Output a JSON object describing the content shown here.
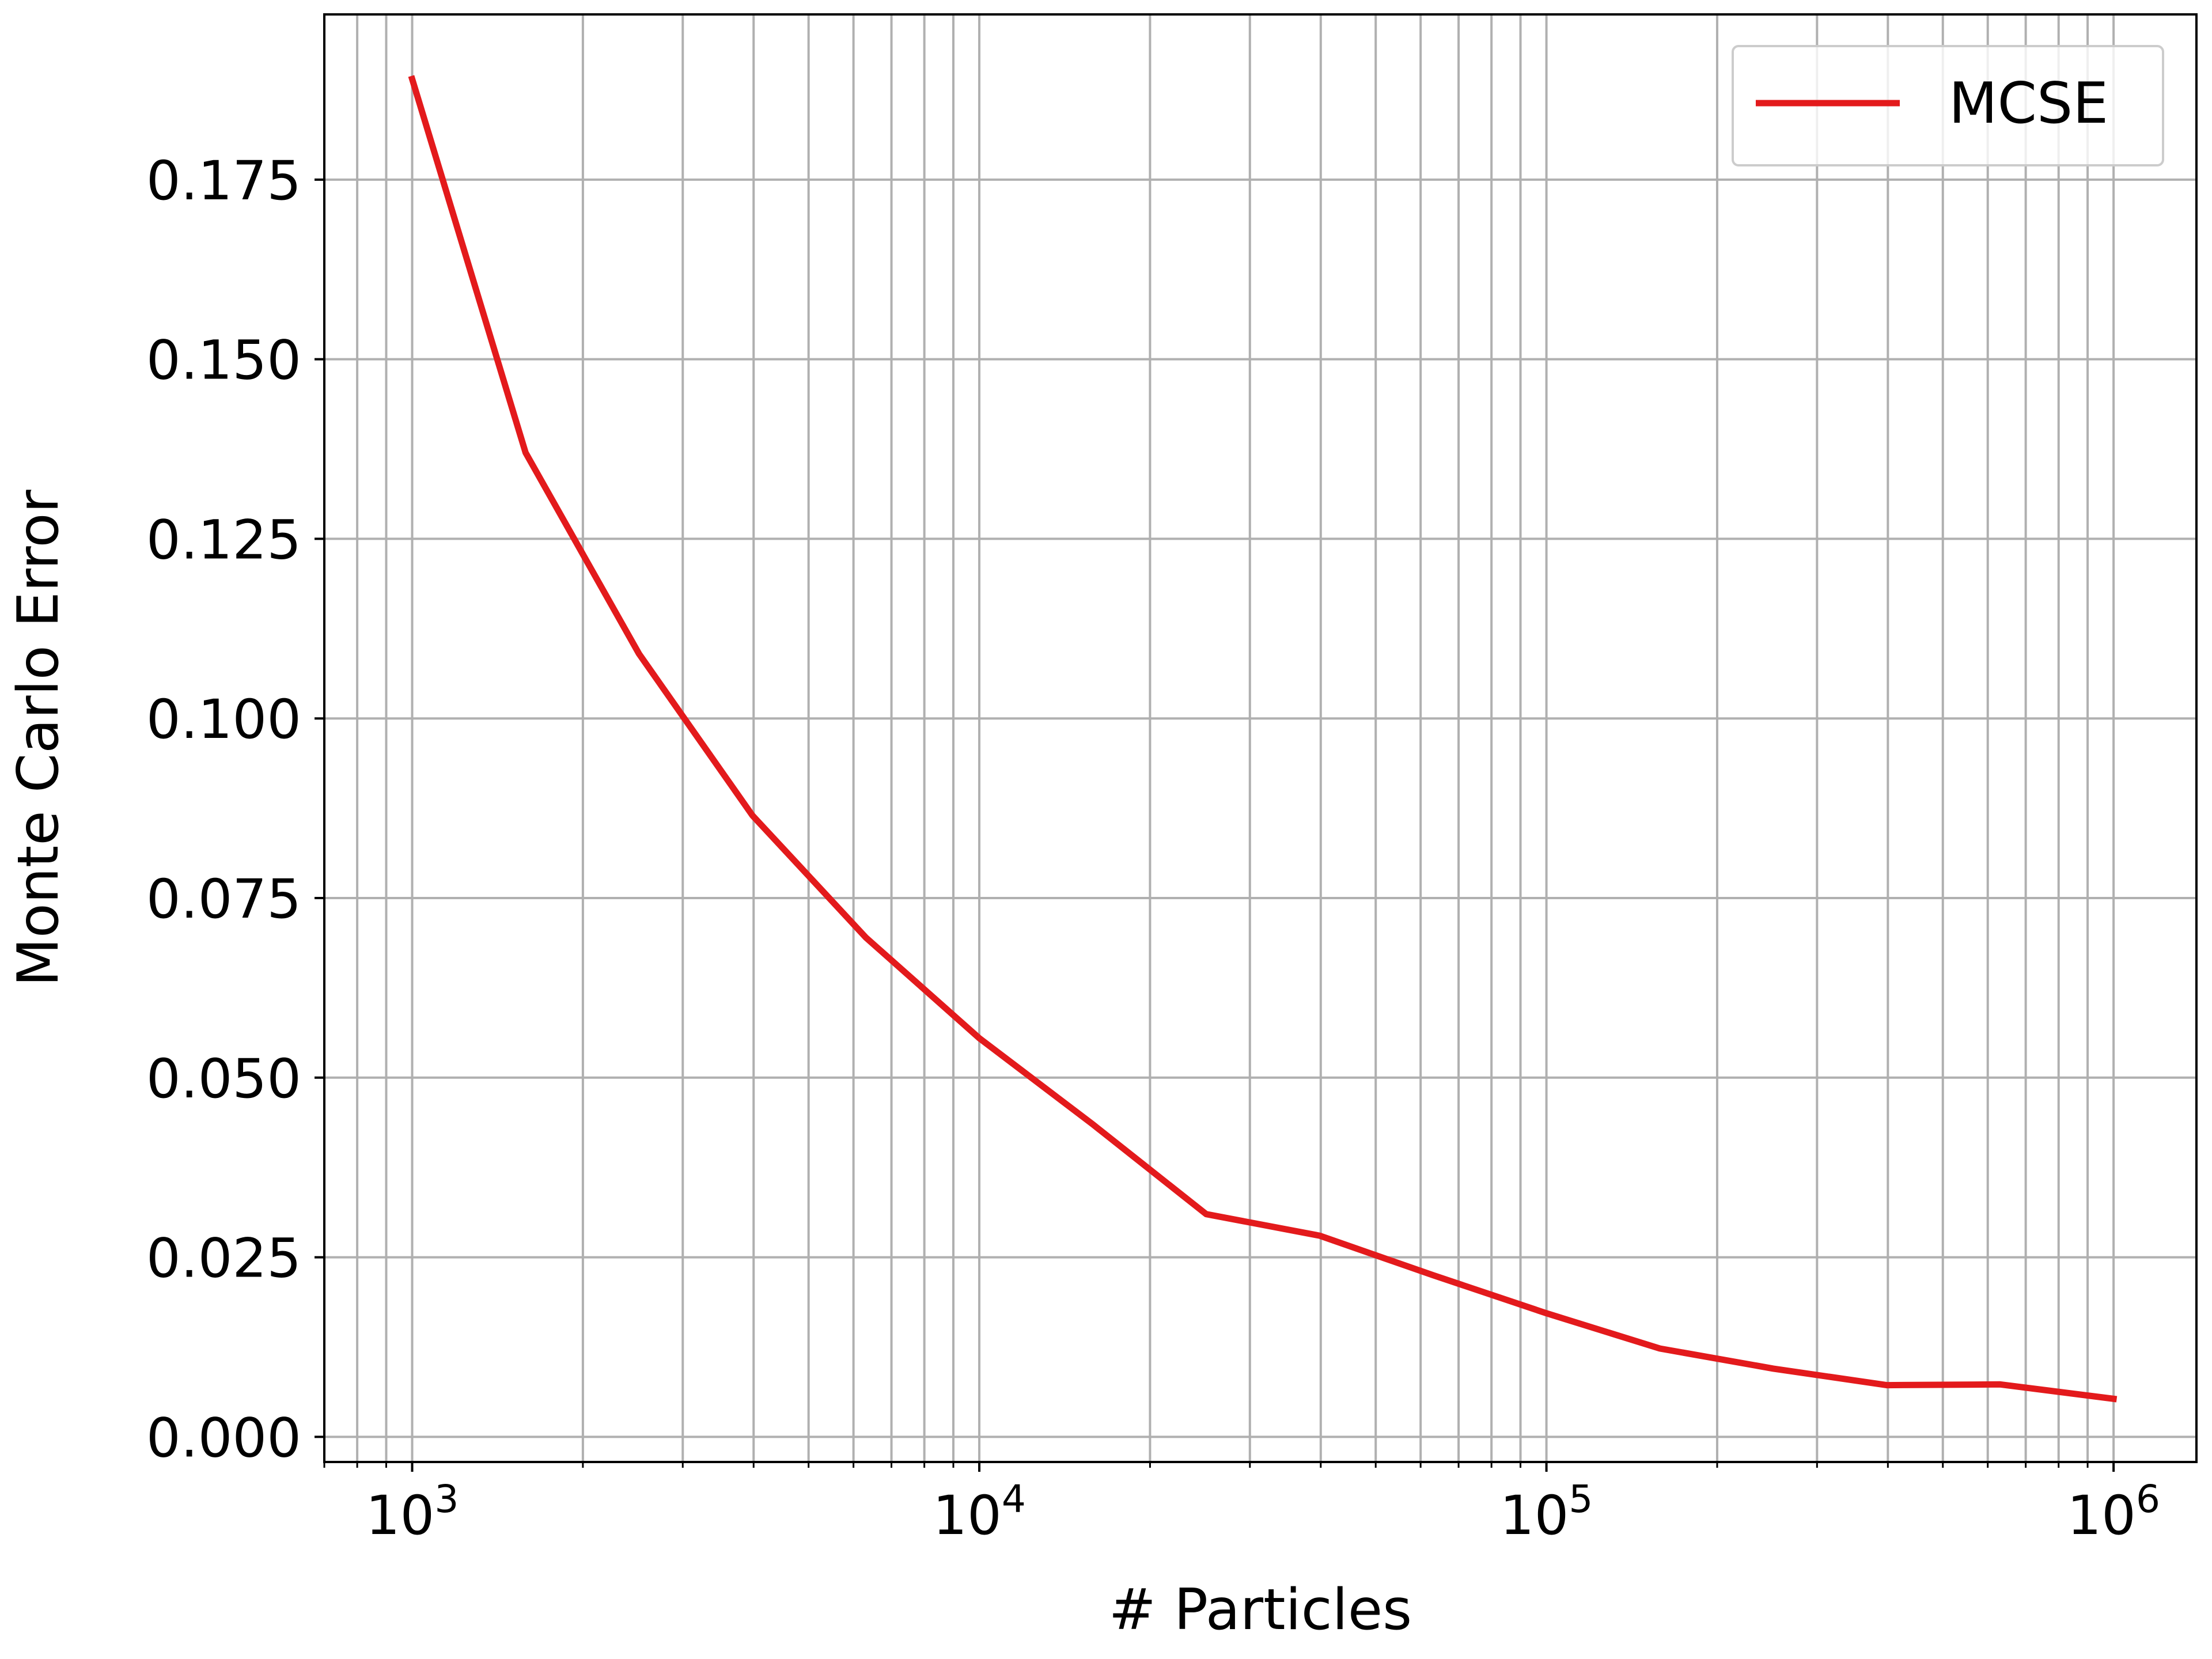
{
  "chart_data": {
    "type": "line",
    "xscale": "log",
    "x": [
      1000,
      1585,
      2512,
      3981,
      6310,
      10000,
      15849,
      25119,
      39811,
      63096,
      100000,
      158489,
      251189,
      398107,
      630957,
      1000000
    ],
    "series": [
      {
        "name": "MCSE",
        "color": "#e31a1c",
        "values": [
          0.189,
          0.137,
          0.109,
          0.0865,
          0.0695,
          0.0555,
          0.0435,
          0.031,
          0.028,
          0.0225,
          0.0172,
          0.0123,
          0.0095,
          0.0072,
          0.0073,
          0.0053
        ]
      }
    ],
    "xlabel": "# Particles",
    "ylabel": "Monte Carlo Error",
    "xlim": [
      700,
      1400000
    ],
    "ylim": [
      -0.0035,
      0.198
    ],
    "yticks": [
      0.0,
      0.025,
      0.05,
      0.075,
      0.1,
      0.125,
      0.15,
      0.175
    ],
    "ytick_labels": [
      "0.000",
      "0.025",
      "0.050",
      "0.075",
      "0.100",
      "0.125",
      "0.150",
      "0.175"
    ],
    "xticks": [
      {
        "value": 1000,
        "base": "10",
        "exp": "3"
      },
      {
        "value": 10000,
        "base": "10",
        "exp": "4"
      },
      {
        "value": 100000,
        "base": "10",
        "exp": "5"
      },
      {
        "value": 1000000,
        "base": "10",
        "exp": "6"
      }
    ],
    "grid": true,
    "grid_color": "#b0b0b0",
    "legend_position": "top-right"
  }
}
